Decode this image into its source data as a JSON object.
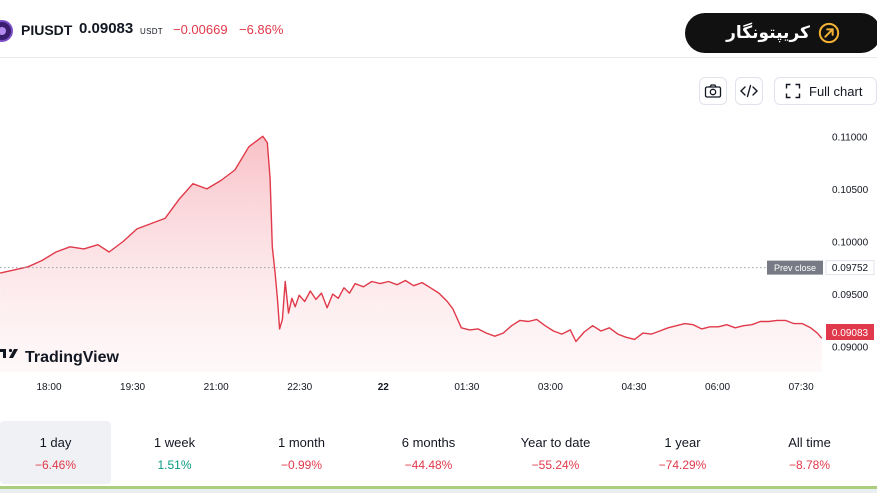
{
  "header": {
    "symbol": "PIUSDT",
    "price": "0.09083",
    "currency": "USDT",
    "change": "−0.00669",
    "change_pct": "−6.86%"
  },
  "brand": {
    "text": "کریپتونگار"
  },
  "toolbar": {
    "camera_icon": "camera-icon",
    "embed_icon": "code-icon",
    "full_chart_label": "Full chart"
  },
  "colors": {
    "line": "#e03a4a",
    "fill_top": "#f7b6bd",
    "negative": "#e0394b",
    "positive": "#089981"
  },
  "chart_data": {
    "type": "area",
    "x_ticks": [
      "18:00",
      "19:30",
      "21:00",
      "22:30",
      "22",
      "01:30",
      "03:00",
      "04:30",
      "06:00",
      "07:30"
    ],
    "y_ticks": [
      "0.11000",
      "0.10500",
      "0.10000",
      "0.09500",
      "0.09000"
    ],
    "ylim": [
      0.0876,
      0.1125
    ],
    "prev_close_label": "Prev close",
    "prev_close": "0.09752",
    "last_price": "0.09083",
    "watermark": "TradingView",
    "series": [
      {
        "points": [
          [
            0,
            0.097
          ],
          [
            0.25,
            0.0973
          ],
          [
            0.5,
            0.0976
          ],
          [
            0.75,
            0.0982
          ],
          [
            1.0,
            0.099
          ],
          [
            1.25,
            0.0995
          ],
          [
            1.5,
            0.0993
          ],
          [
            1.75,
            0.0997
          ],
          [
            1.95,
            0.099
          ],
          [
            2.2,
            0.1
          ],
          [
            2.45,
            0.1012
          ],
          [
            2.7,
            0.1017
          ],
          [
            2.95,
            0.1022
          ],
          [
            3.2,
            0.104
          ],
          [
            3.45,
            0.1055
          ],
          [
            3.7,
            0.105
          ],
          [
            3.95,
            0.1058
          ],
          [
            4.2,
            0.1068
          ],
          [
            4.45,
            0.109
          ],
          [
            4.7,
            0.11
          ],
          [
            4.78,
            0.1094
          ],
          [
            4.83,
            0.106
          ],
          [
            4.87,
            0.0995
          ],
          [
            4.92,
            0.097
          ],
          [
            4.96,
            0.0946
          ],
          [
            5.0,
            0.0917
          ],
          [
            5.05,
            0.0926
          ],
          [
            5.1,
            0.0962
          ],
          [
            5.16,
            0.0932
          ],
          [
            5.22,
            0.0946
          ],
          [
            5.28,
            0.0938
          ],
          [
            5.35,
            0.0949
          ],
          [
            5.45,
            0.0943
          ],
          [
            5.55,
            0.0953
          ],
          [
            5.65,
            0.0945
          ],
          [
            5.75,
            0.0951
          ],
          [
            5.85,
            0.0937
          ],
          [
            5.95,
            0.095
          ],
          [
            6.05,
            0.0946
          ],
          [
            6.15,
            0.0956
          ],
          [
            6.25,
            0.0951
          ],
          [
            6.35,
            0.096
          ],
          [
            6.5,
            0.0957
          ],
          [
            6.65,
            0.0962
          ],
          [
            6.8,
            0.096
          ],
          [
            6.95,
            0.0962
          ],
          [
            7.1,
            0.0959
          ],
          [
            7.25,
            0.0963
          ],
          [
            7.4,
            0.0958
          ],
          [
            7.55,
            0.0961
          ],
          [
            7.7,
            0.0956
          ],
          [
            7.85,
            0.0951
          ],
          [
            8.0,
            0.0943
          ],
          [
            8.1,
            0.0936
          ],
          [
            8.25,
            0.0918
          ],
          [
            8.4,
            0.0916
          ],
          [
            8.55,
            0.0917
          ],
          [
            8.7,
            0.0913
          ],
          [
            8.85,
            0.091
          ],
          [
            9.0,
            0.0913
          ],
          [
            9.15,
            0.092
          ],
          [
            9.3,
            0.0925
          ],
          [
            9.45,
            0.0924
          ],
          [
            9.6,
            0.0926
          ],
          [
            9.75,
            0.092
          ],
          [
            9.9,
            0.0915
          ],
          [
            10.05,
            0.0912
          ],
          [
            10.2,
            0.0916
          ],
          [
            10.3,
            0.0905
          ],
          [
            10.45,
            0.0914
          ],
          [
            10.6,
            0.092
          ],
          [
            10.75,
            0.0915
          ],
          [
            10.9,
            0.0918
          ],
          [
            11.05,
            0.0912
          ],
          [
            11.2,
            0.0909
          ],
          [
            11.35,
            0.0907
          ],
          [
            11.5,
            0.0913
          ],
          [
            11.65,
            0.0912
          ],
          [
            11.8,
            0.0915
          ],
          [
            11.95,
            0.0918
          ],
          [
            12.1,
            0.092
          ],
          [
            12.25,
            0.0922
          ],
          [
            12.4,
            0.0921
          ],
          [
            12.55,
            0.0917
          ],
          [
            12.7,
            0.0919
          ],
          [
            12.85,
            0.0919
          ],
          [
            13.0,
            0.0921
          ],
          [
            13.15,
            0.0918
          ],
          [
            13.3,
            0.092
          ],
          [
            13.45,
            0.0921
          ],
          [
            13.6,
            0.0924
          ],
          [
            13.75,
            0.0924
          ],
          [
            13.9,
            0.0925
          ],
          [
            14.05,
            0.0925
          ],
          [
            14.2,
            0.0922
          ],
          [
            14.35,
            0.0922
          ],
          [
            14.5,
            0.0918
          ],
          [
            14.62,
            0.0913
          ],
          [
            14.7,
            0.0908
          ]
        ]
      }
    ]
  },
  "tabs": [
    {
      "label": "1 day",
      "change": "−6.46%",
      "trend": "neg",
      "active": true
    },
    {
      "label": "1 week",
      "change": "1.51%",
      "trend": "pos",
      "active": false
    },
    {
      "label": "1 month",
      "change": "−0.99%",
      "trend": "neg",
      "active": false
    },
    {
      "label": "6 months",
      "change": "−44.48%",
      "trend": "neg",
      "active": false
    },
    {
      "label": "Year to date",
      "change": "−55.24%",
      "trend": "neg",
      "active": false
    },
    {
      "label": "1 year",
      "change": "−74.29%",
      "trend": "neg",
      "active": false
    },
    {
      "label": "All time",
      "change": "−8.78%",
      "trend": "neg",
      "active": false
    }
  ]
}
